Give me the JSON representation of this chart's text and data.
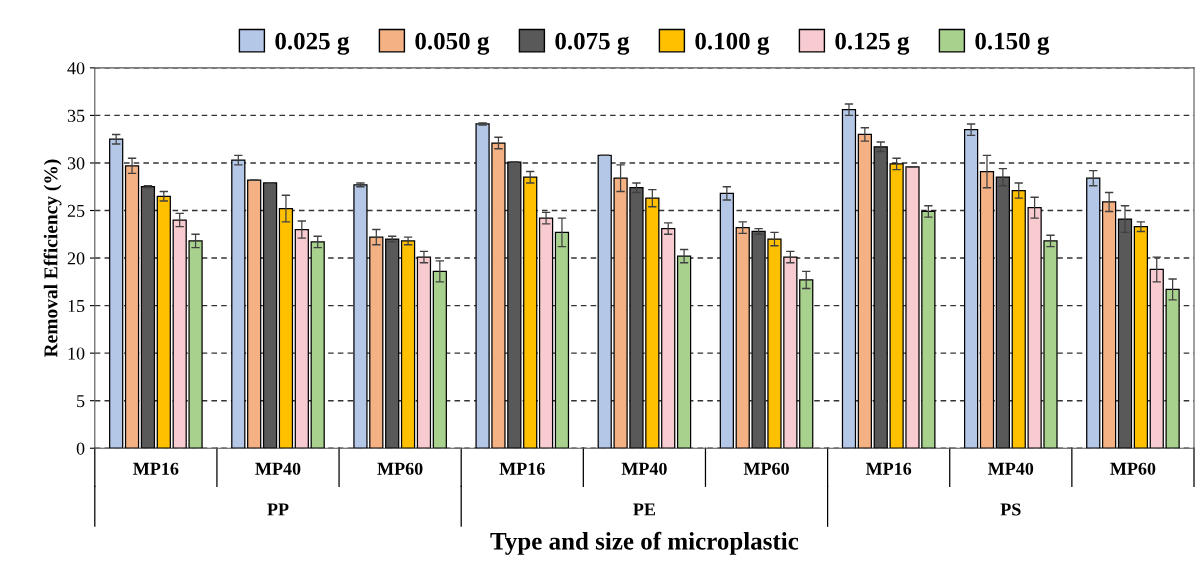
{
  "chart_data": {
    "type": "bar",
    "xlabel": "Type and size of microplastic",
    "ylabel": "Removal Efficiency (%)",
    "categories": [
      "MP16",
      "MP40",
      "MP60",
      "MP16",
      "MP40",
      "MP60",
      "MP16",
      "MP40",
      "MP60"
    ],
    "annotations": [
      "PP",
      "PE",
      "PS"
    ],
    "series": [
      {
        "name": "0.025 g",
        "color": "#b4c7e7",
        "values": [
          32.5,
          30.3,
          27.7,
          34.1,
          30.8,
          26.8,
          35.6,
          33.5,
          28.4
        ],
        "errors": [
          0.5,
          0.5,
          0.2,
          0.1,
          0,
          0.7,
          0.6,
          0.6,
          0.8
        ]
      },
      {
        "name": "0.050 g",
        "color": "#f4b183",
        "values": [
          29.7,
          28.2,
          22.2,
          32.1,
          28.4,
          23.2,
          33.0,
          29.1,
          25.9
        ],
        "errors": [
          0.8,
          0,
          0.8,
          0.6,
          1.4,
          0.6,
          0.7,
          1.7,
          1.0
        ]
      },
      {
        "name": "0.075 g",
        "color": "#595959",
        "values": [
          27.5,
          27.9,
          22.0,
          30.1,
          27.4,
          22.8,
          31.7,
          28.5,
          24.1
        ],
        "errors": [
          0.1,
          0,
          0.3,
          0,
          0.5,
          0.3,
          0.5,
          0.9,
          1.4
        ]
      },
      {
        "name": "0.100 g",
        "color": "#ffc000",
        "values": [
          26.5,
          25.2,
          21.8,
          28.5,
          26.3,
          22.0,
          29.9,
          27.1,
          23.3
        ],
        "errors": [
          0.5,
          1.4,
          0.4,
          0.6,
          0.9,
          0.7,
          0.6,
          0.8,
          0.5
        ]
      },
      {
        "name": "0.125 g",
        "color": "#f8cbd0",
        "values": [
          24.0,
          23.0,
          20.1,
          24.2,
          23.1,
          20.1,
          29.6,
          25.3,
          18.8
        ],
        "errors": [
          0.7,
          0.9,
          0.6,
          0.6,
          0.6,
          0.6,
          0,
          1.1,
          1.3
        ]
      },
      {
        "name": "0.150 g",
        "color": "#a9d18e",
        "values": [
          21.8,
          21.7,
          18.6,
          22.7,
          20.2,
          17.7,
          24.9,
          21.8,
          16.7
        ],
        "errors": [
          0.7,
          0.6,
          1.1,
          1.5,
          0.7,
          0.9,
          0.6,
          0.6,
          1.1
        ]
      }
    ],
    "ylim": [
      0,
      40
    ],
    "yticks": [
      0,
      5,
      10,
      15,
      20,
      25,
      30,
      35,
      40
    ],
    "grid": "y",
    "legend": "top"
  }
}
